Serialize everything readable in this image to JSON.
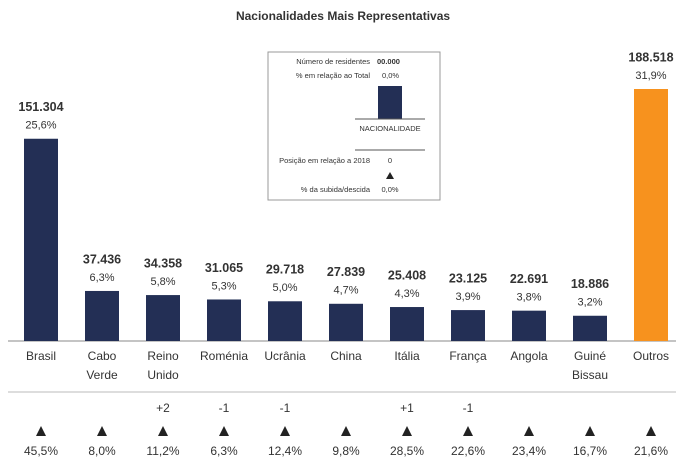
{
  "chart_data": {
    "type": "bar",
    "title": "Nacionalidades Mais Representativas",
    "categories": [
      "Brasil",
      "Cabo Verde",
      "Reino Unido",
      "Roménia",
      "Ucrânia",
      "China",
      "Itália",
      "França",
      "Angola",
      "Guiné Bissau",
      "Outros"
    ],
    "values": [
      151304,
      37436,
      34358,
      31065,
      29718,
      27839,
      25408,
      23125,
      22691,
      18886,
      188518
    ],
    "value_labels": [
      "151.304",
      "37.436",
      "34.358",
      "31.065",
      "29.718",
      "27.839",
      "25.408",
      "23.125",
      "22.691",
      "18.886",
      "188.518"
    ],
    "shares": [
      25.6,
      6.3,
      5.8,
      5.3,
      5.0,
      4.7,
      4.3,
      3.9,
      3.8,
      3.2,
      31.9
    ],
    "share_labels": [
      "25,6%",
      "6,3%",
      "5,8%",
      "5,3%",
      "5,0%",
      "4,7%",
      "4,3%",
      "3,9%",
      "3,8%",
      "3,2%",
      "31,9%"
    ],
    "position_changes": [
      null,
      null,
      2,
      -1,
      -1,
      null,
      1,
      -1,
      null,
      null,
      null
    ],
    "position_change_labels": [
      null,
      null,
      "+2",
      "-1",
      "-1",
      null,
      "+1",
      "-1",
      null,
      null,
      null
    ],
    "growth": [
      45.5,
      8.0,
      11.2,
      6.3,
      12.4,
      9.8,
      28.5,
      22.6,
      23.4,
      16.7,
      21.6
    ],
    "growth_labels": [
      "45,5%",
      "8,0%",
      "11,2%",
      "6,3%",
      "12,4%",
      "9,8%",
      "28,5%",
      "22,6%",
      "23,4%",
      "16,7%",
      "21,6%"
    ],
    "colors": [
      "#232f55",
      "#232f55",
      "#232f55",
      "#232f55",
      "#232f55",
      "#232f55",
      "#232f55",
      "#232f55",
      "#232f55",
      "#232f55",
      "#f7921e"
    ],
    "legend": {
      "residents_label": "Número de residentes",
      "residents_value": "00.000",
      "share_label": "% em relação ao Total",
      "share_value": "0,0%",
      "bar_label": "NACIONALIDADE",
      "position_label": "Posição em relação a 2018",
      "position_value": "0",
      "growth_label": "% da subida/descida",
      "growth_value": "0,0%"
    }
  }
}
